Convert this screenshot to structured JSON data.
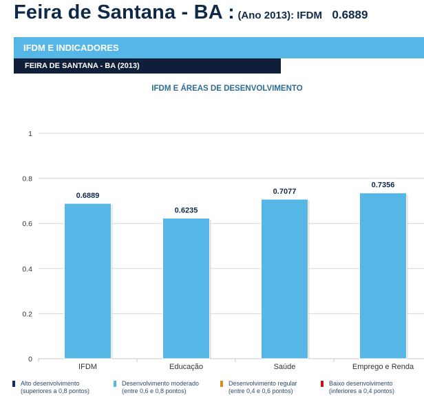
{
  "header": {
    "city": "Feira de Santana - BA :",
    "year_part": "(Ano 2013): IFDM",
    "index_value": "0.6889"
  },
  "section": {
    "title": "IFDM E INDICADORES",
    "subtitle": "FEIRA DE SANTANA - BA (2013)"
  },
  "chart_data": {
    "type": "bar",
    "title": "IFDM E ÁREAS DE DESENVOLVIMENTO",
    "categories": [
      "IFDM",
      "Educação",
      "Saúde",
      "Emprego e Renda"
    ],
    "values": [
      0.6889,
      0.6235,
      0.7077,
      0.7356
    ],
    "value_labels": [
      "0.6889",
      "0.6235",
      "0.7077",
      "0.7356"
    ],
    "ylim": [
      0,
      1
    ],
    "yticks": [
      "0",
      "0.2",
      "0.4",
      "0.6",
      "0.8",
      "1"
    ],
    "grid": true,
    "bar_color": "#56b7e6",
    "legend": [
      {
        "label": "Alto desenvolvimento",
        "detail": "(superiores a 0,8 pontos)",
        "color": "#0f2a6b"
      },
      {
        "label": "Desenvolvimento moderado",
        "detail": "(entre 0,6 e 0,8 pontos)",
        "color": "#56b7e6"
      },
      {
        "label": "Desenvolvimento regular",
        "detail": "(entre 0,4 e 0,6 pontos)",
        "color": "#d98c1a"
      },
      {
        "label": "Baixo desenvolvimento",
        "detail": "(inferiores a 0,4 pontos)",
        "color": "#c0141c"
      }
    ],
    "legend_position": "bottom"
  }
}
